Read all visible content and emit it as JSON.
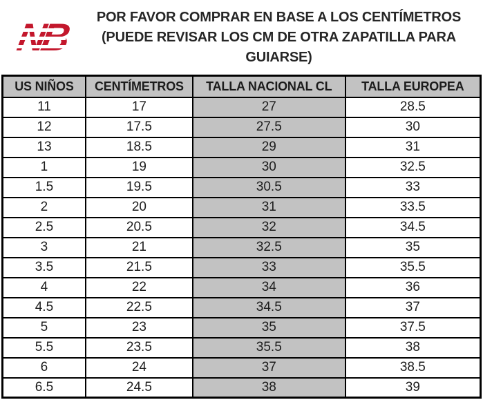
{
  "header": {
    "line1": "POR FAVOR COMPRAR EN BASE A LOS CENTÍMETROS",
    "line2": "(PUEDE REVISAR LOS CM DE OTRA ZAPATILLA PARA GUIARSE)",
    "logo": {
      "brand": "New Balance",
      "text": "NB",
      "color": "#c3172c"
    }
  },
  "table": {
    "columns": [
      "US NIÑOS",
      "CENTÍMETROS",
      "TALLA NACIONAL CL",
      "TALLA EUROPEA"
    ],
    "highlight_column_index": 2,
    "colors": {
      "header_bg": "#c2c2c2",
      "highlight_bg": "#c2c2c2",
      "border": "#000000",
      "text": "#1c1c1c"
    },
    "rows": [
      [
        "11",
        "17",
        "27",
        "28.5"
      ],
      [
        "12",
        "17.5",
        "27.5",
        "30"
      ],
      [
        "13",
        "18.5",
        "29",
        "31"
      ],
      [
        "1",
        "19",
        "30",
        "32.5"
      ],
      [
        "1.5",
        "19.5",
        "30.5",
        "33"
      ],
      [
        "2",
        "20",
        "31",
        "33.5"
      ],
      [
        "2.5",
        "20.5",
        "32",
        "34.5"
      ],
      [
        "3",
        "21",
        "32.5",
        "35"
      ],
      [
        "3.5",
        "21.5",
        "33",
        "35.5"
      ],
      [
        "4",
        "22",
        "34",
        "36"
      ],
      [
        "4.5",
        "22.5",
        "34.5",
        "37"
      ],
      [
        "5",
        "23",
        "35",
        "37.5"
      ],
      [
        "5.5",
        "23.5",
        "35.5",
        "38"
      ],
      [
        "6",
        "24",
        "37",
        "38.5"
      ],
      [
        "6.5",
        "24.5",
        "38",
        "39"
      ]
    ]
  }
}
